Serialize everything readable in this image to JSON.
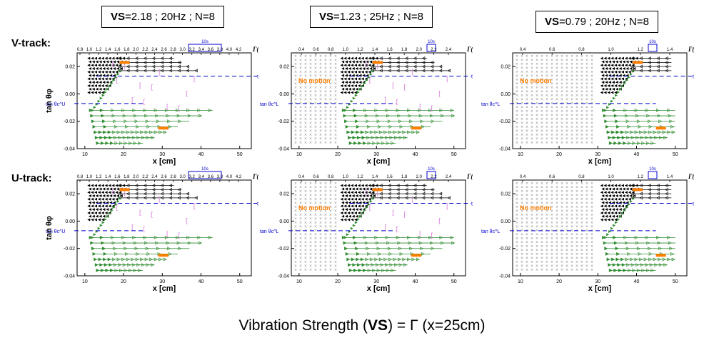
{
  "headers": [
    {
      "vs_label": "VS",
      "rest": "=2.18 ; 20Hz ; N=8"
    },
    {
      "vs_label": "VS",
      "rest": "=1.23 ; 25Hz ; N=8"
    },
    {
      "vs_label": "VS",
      "rest": "=0.79 ; 20Hz ; N=8"
    }
  ],
  "row_labels": [
    "V-track:",
    "U-track:"
  ],
  "footer": {
    "pre": "Vibration Strength (",
    "bold": "VS",
    "post": ") = Γ (x=25cm)"
  },
  "colors": {
    "black": "#000000",
    "green": "#2e8b2e",
    "blue": "#0000cc",
    "pink": "#dd88dd",
    "orange": "#ff7f00",
    "gray": "#888888"
  },
  "chart_data": [
    {
      "type": "scatter",
      "id": "v1",
      "xlabel": "x [cm]",
      "ylabel": "tan θφ",
      "top_axis_label": "Γ(x)",
      "xlim": [
        8,
        53
      ],
      "ylim": [
        -0.04,
        0.03
      ],
      "xticks": [
        "10",
        "20",
        "30",
        "40",
        "50"
      ],
      "yticks": [
        "0.02",
        "0.00",
        "-0.02",
        "-0.04"
      ],
      "top_ticks": [
        "0.8",
        "1.0",
        "1.2",
        "1.4",
        "1.6",
        "1.8",
        "2.0",
        "2.2",
        "2.4",
        "2.6",
        "2.8",
        "3.0",
        "3.2",
        "3.4",
        "3.6",
        "3.8",
        "4.0",
        "4.2"
      ],
      "scalebar": "10s",
      "annotations": [
        "tan θc^U",
        "tan θc^U"
      ],
      "no_motion": "",
      "nomotion_to": 0
    },
    {
      "type": "scatter",
      "id": "v2",
      "xlabel": "x [cm]",
      "ylabel": "",
      "top_axis_label": "Γ(x)",
      "xlim": [
        8,
        53
      ],
      "ylim": [
        -0.04,
        0.03
      ],
      "xticks": [
        "10",
        "20",
        "30",
        "40",
        "50"
      ],
      "yticks": [
        "0.02",
        "0.00",
        "-0.02",
        "-0.04"
      ],
      "top_ticks": [
        "0.4",
        "0.6",
        "0.8",
        "1.0",
        "1.2",
        "1.4",
        "1.6",
        "1.8",
        "2.0",
        "2.2",
        "2.4"
      ],
      "scalebar": "10s",
      "annotations": [
        "tan θc^U",
        "tan θc^L"
      ],
      "no_motion": "No motion",
      "nomotion_to": 20
    },
    {
      "type": "scatter",
      "id": "v3",
      "xlabel": "x [cm]",
      "ylabel": "",
      "top_axis_label": "Γ(x)",
      "xlim": [
        8,
        53
      ],
      "ylim": [
        -0.04,
        0.03
      ],
      "xticks": [
        "10",
        "20",
        "30",
        "40",
        "50"
      ],
      "yticks": [
        "0.02",
        "0.00",
        "-0.02",
        "-0.04"
      ],
      "top_ticks": [
        "0.4",
        "0.6",
        "0.8",
        "1.0",
        "1.2",
        "1.4"
      ],
      "scalebar": "10s",
      "annotations": [
        "tan θc^U",
        "tan θc^L"
      ],
      "no_motion": "No motion",
      "nomotion_to": 30
    },
    {
      "type": "scatter",
      "id": "u1",
      "xlabel": "x [cm]",
      "ylabel": "tan θφ",
      "top_axis_label": "Γ(x)",
      "xlim": [
        8,
        53
      ],
      "ylim": [
        -0.04,
        0.03
      ],
      "xticks": [
        "10",
        "20",
        "30",
        "40",
        "50"
      ],
      "yticks": [
        "0.02",
        "0.00",
        "-0.02",
        "-0.04"
      ],
      "top_ticks": [
        "0.8",
        "1.0",
        "1.2",
        "1.4",
        "1.6",
        "1.8",
        "2.0",
        "2.2",
        "2.4",
        "2.6",
        "2.8",
        "3.0",
        "3.2",
        "3.4",
        "3.6",
        "3.8",
        "4.0",
        "4.2"
      ],
      "scalebar": "10s",
      "annotations": [
        "tan θc^U",
        "tan θc^U"
      ],
      "no_motion": "",
      "nomotion_to": 0
    },
    {
      "type": "scatter",
      "id": "u2",
      "xlabel": "x [cm]",
      "ylabel": "",
      "top_axis_label": "Γ(x)",
      "xlim": [
        8,
        53
      ],
      "ylim": [
        -0.04,
        0.03
      ],
      "xticks": [
        "10",
        "20",
        "30",
        "40",
        "50"
      ],
      "yticks": [
        "0.02",
        "0.00",
        "-0.02",
        "-0.04"
      ],
      "top_ticks": [
        "0.4",
        "0.6",
        "0.8",
        "1.0",
        "1.2",
        "1.4",
        "1.6",
        "1.8",
        "2.0",
        "2.2",
        "2.4"
      ],
      "scalebar": "10s",
      "annotations": [
        "tan θc^U",
        "tan θc^L"
      ],
      "no_motion": "No motion",
      "nomotion_to": 20
    },
    {
      "type": "scatter",
      "id": "u3",
      "xlabel": "x [cm]",
      "ylabel": "",
      "top_axis_label": "Γ(x)",
      "xlim": [
        8,
        53
      ],
      "ylim": [
        -0.04,
        0.03
      ],
      "xticks": [
        "10",
        "20",
        "30",
        "40",
        "50"
      ],
      "yticks": [
        "0.02",
        "0.00",
        "-0.02",
        "-0.04"
      ],
      "top_ticks": [
        "0.4",
        "0.6",
        "0.8",
        "1.0",
        "1.2",
        "1.4"
      ],
      "scalebar": "10s",
      "annotations": [
        "tan θc^U",
        "tan θc^L"
      ],
      "no_motion": "No motion",
      "nomotion_to": 30
    }
  ]
}
